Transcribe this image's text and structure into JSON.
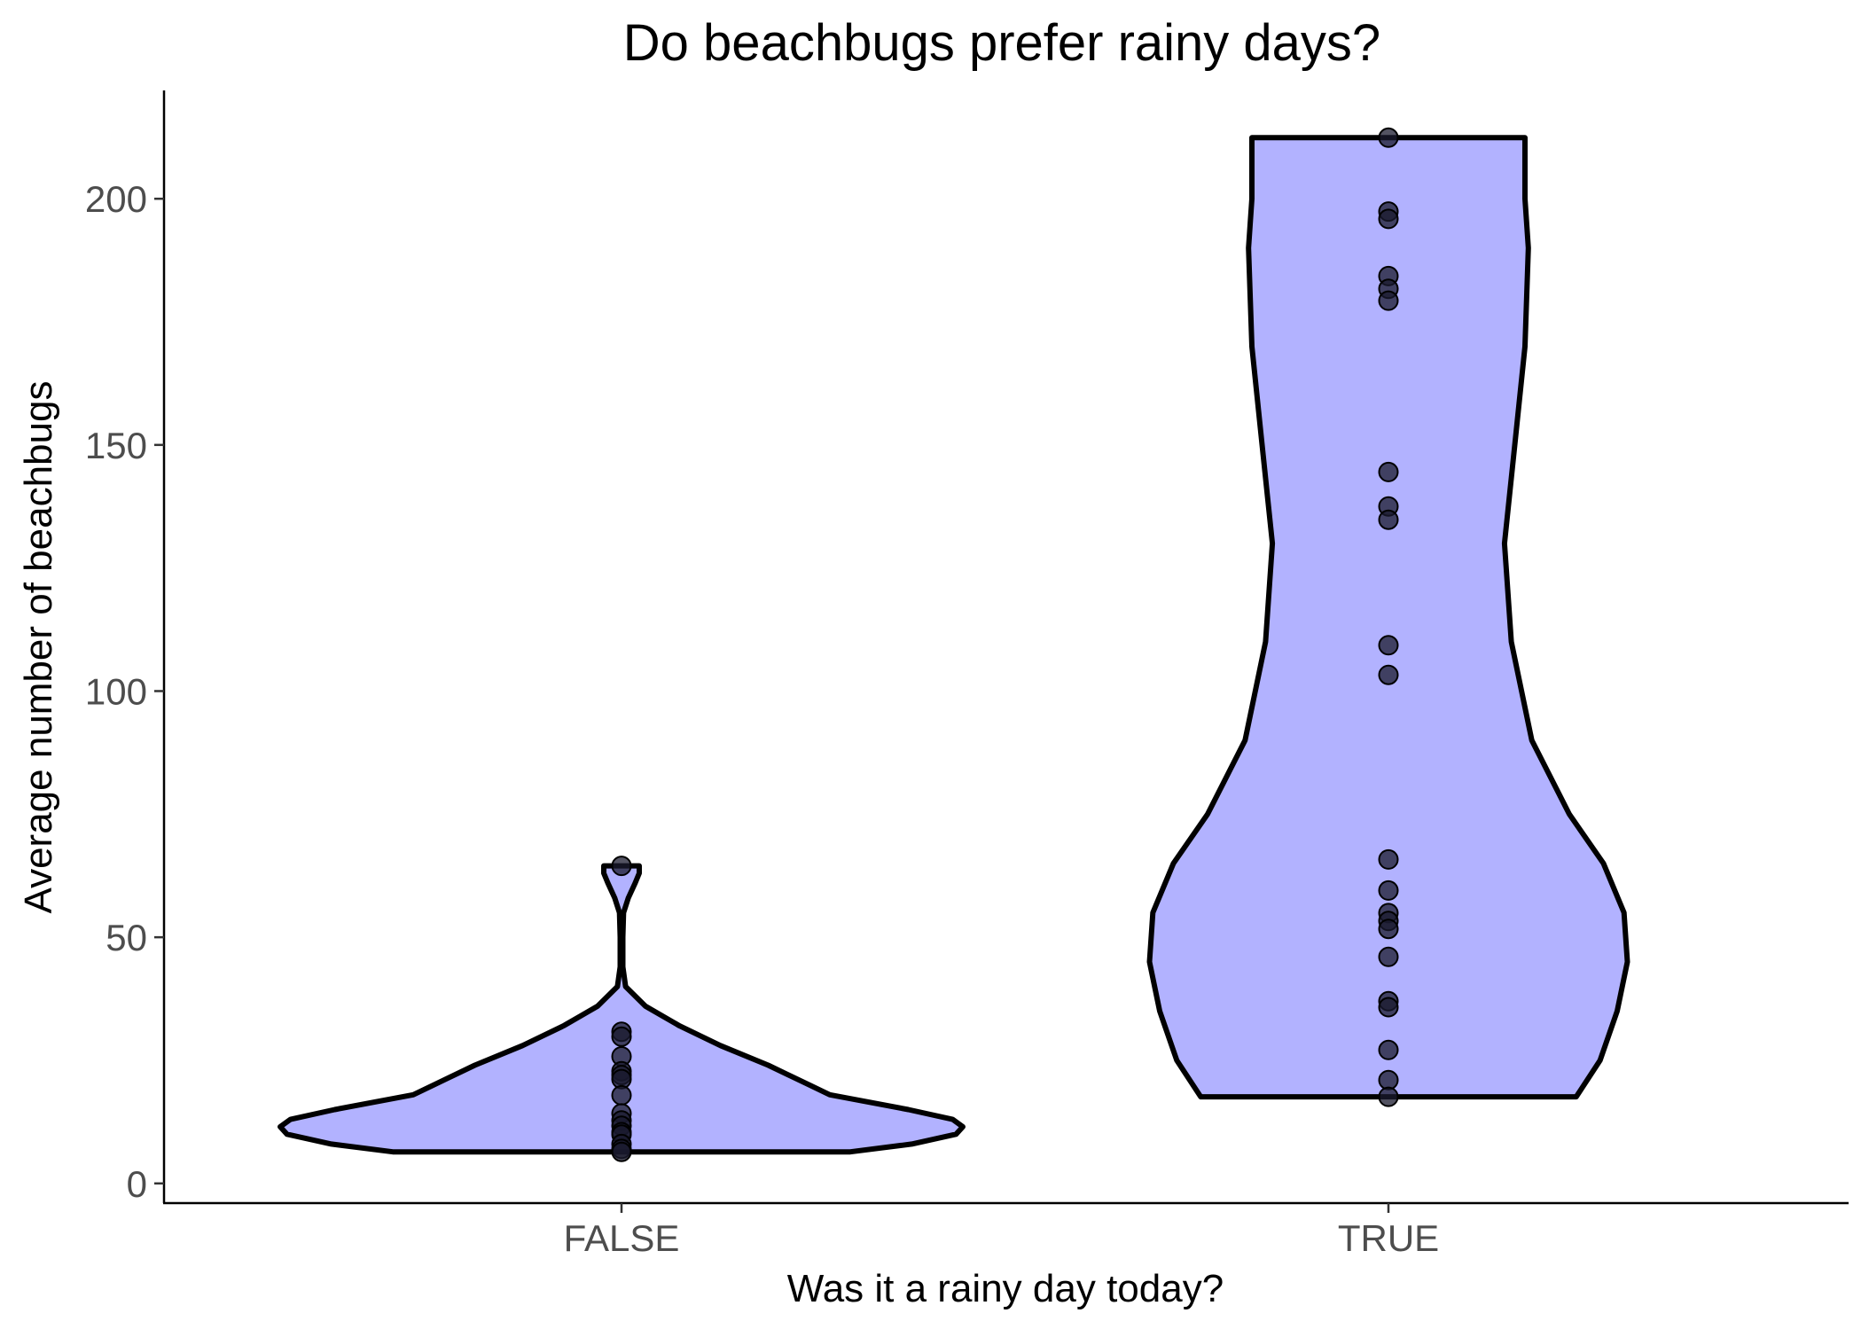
{
  "chart_data": {
    "type": "violin",
    "title": "Do beachbugs prefer rainy days?",
    "xlabel": "Was it a rainy day today?",
    "ylabel": "Average number of beachbugs",
    "categories": [
      "FALSE",
      "TRUE"
    ],
    "ylim": [
      -4,
      222
    ],
    "yticks": [
      0,
      50,
      100,
      150,
      200
    ],
    "grid": false,
    "legend": "none",
    "colors": {
      "violin_fill": "#b2b2ff",
      "violin_outline": "#000000",
      "point": "#1a1a2e"
    },
    "points": {
      "FALSE": [
        64.5,
        30.8,
        29.8,
        25.8,
        22.8,
        22.0,
        21.2,
        17.9,
        14.2,
        12.8,
        11.7,
        10.4,
        9.9,
        8.0,
        7.0,
        6.4
      ],
      "TRUE": [
        212.4,
        197.4,
        195.9,
        184.3,
        181.7,
        179.3,
        144.5,
        137.5,
        134.8,
        109.3,
        103.3,
        65.8,
        59.5,
        54.9,
        53.3,
        51.7,
        46.0,
        37.0,
        35.8,
        27.1,
        21.0,
        17.6
      ]
    },
    "density": {
      "FALSE": [
        [
          6.4,
          0.67
        ],
        [
          8,
          0.85
        ],
        [
          10,
          0.98
        ],
        [
          11.5,
          1.0
        ],
        [
          13,
          0.97
        ],
        [
          15,
          0.84
        ],
        [
          18,
          0.61
        ],
        [
          20,
          0.55
        ],
        [
          24,
          0.43
        ],
        [
          28,
          0.29
        ],
        [
          32,
          0.17
        ],
        [
          36,
          0.07
        ],
        [
          40,
          0.012
        ],
        [
          44,
          0.004
        ],
        [
          50,
          0.004
        ],
        [
          55,
          0.006
        ],
        [
          58,
          0.02
        ],
        [
          61,
          0.04
        ],
        [
          63,
          0.052
        ],
        [
          64.5,
          0.052
        ]
      ],
      "TRUE": [
        [
          17.6,
          0.55
        ],
        [
          25,
          0.62
        ],
        [
          35,
          0.67
        ],
        [
          45,
          0.7
        ],
        [
          55,
          0.69
        ],
        [
          65,
          0.63
        ],
        [
          75,
          0.53
        ],
        [
          90,
          0.42
        ],
        [
          110,
          0.36
        ],
        [
          130,
          0.34
        ],
        [
          150,
          0.37
        ],
        [
          170,
          0.4
        ],
        [
          190,
          0.41
        ],
        [
          200,
          0.4
        ],
        [
          210,
          0.4
        ],
        [
          212.4,
          0.4
        ]
      ]
    }
  }
}
